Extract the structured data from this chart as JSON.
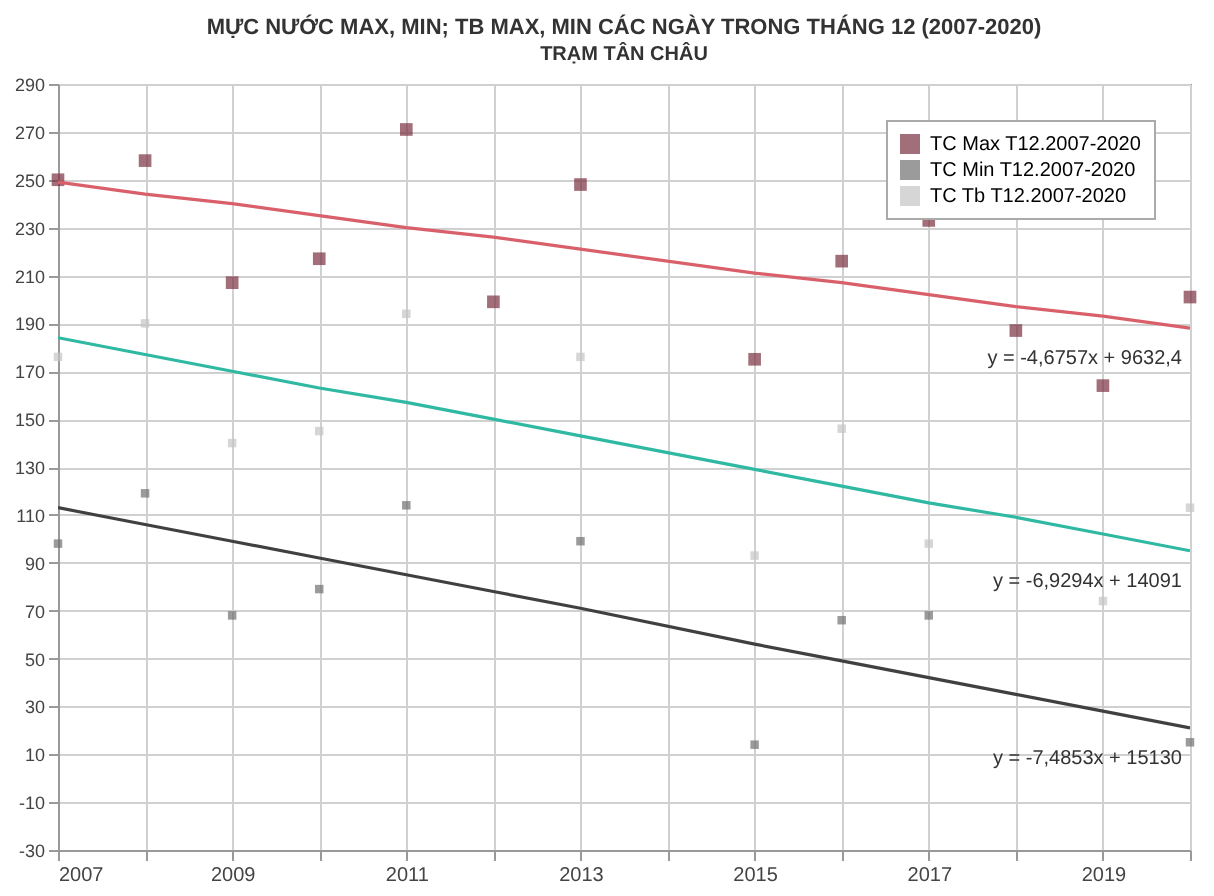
{
  "chart_data": {
    "type": "scatter",
    "title": "MỰC NƯỚC MAX, MIN; TB MAX, MIN CÁC NGÀY TRONG THÁNG 12 (2007-2020)",
    "subtitle": "TRẠM TÂN CHÂU",
    "x": [
      2007,
      2008,
      2009,
      2010,
      2011,
      2012,
      2013,
      2015,
      2016,
      2017,
      2018,
      2019,
      2020
    ],
    "series": [
      {
        "name": "TC Max T12.2007-2020",
        "color": "#7a3040",
        "values": [
          250,
          258,
          207,
          217,
          271,
          199,
          248,
          175,
          216,
          233,
          187,
          164,
          201
        ]
      },
      {
        "name": "TC Min T12.2007-2020",
        "color": "#707070",
        "values": [
          98,
          119,
          68,
          79,
          114,
          null,
          99,
          14,
          66,
          68,
          null,
          null,
          15
        ]
      },
      {
        "name": "TC Tb T12.2007-2020",
        "color": "#c4c4c4",
        "values": [
          176,
          190,
          140,
          145,
          194,
          null,
          176,
          93,
          146,
          98,
          null,
          74,
          113
        ]
      },
      {
        "type": "line",
        "marker": "none",
        "color": "#d9606a",
        "values": [
          249,
          244,
          240,
          235,
          230,
          226,
          221,
          211,
          207,
          202,
          197,
          193,
          188
        ]
      },
      {
        "type": "line",
        "marker": "none",
        "color": "#2fb8a2",
        "values": [
          184,
          177,
          170,
          163,
          157,
          150,
          143,
          129,
          122,
          115,
          109,
          102,
          95
        ]
      },
      {
        "type": "line",
        "marker": "none",
        "color": "#404040",
        "values": [
          113,
          106,
          99,
          92,
          85,
          78,
          71,
          56,
          49,
          42,
          35,
          28,
          21
        ]
      }
    ],
    "xlim": [
      2007,
      2020
    ],
    "xticks": [
      2007,
      {
        "value": 2008,
        "label": null
      },
      2009,
      {
        "value": 2010,
        "label": null
      },
      2011,
      {
        "value": 2012,
        "label": null
      },
      2013,
      {
        "value": 2014,
        "label": null
      },
      2015,
      {
        "value": 2016,
        "label": null
      },
      2017,
      {
        "value": 2018,
        "label": null
      },
      2019,
      {
        "value": 2020,
        "label": null
      }
    ],
    "ylim": [
      -30,
      290
    ],
    "yticks": [
      -30,
      -10,
      10,
      30,
      50,
      70,
      90,
      110,
      130,
      150,
      170,
      190,
      210,
      230,
      250,
      270,
      290
    ],
    "annotations": [
      "y = -4,6757x + 9632,4",
      "y = -6,9294x + 14091",
      "y = -7,4853x + 15130"
    ],
    "grid": true,
    "legend": "top right",
    "marker": "square"
  }
}
